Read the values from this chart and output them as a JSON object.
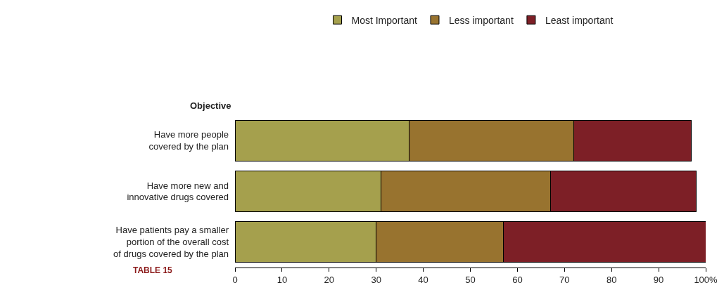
{
  "chart_data": {
    "type": "bar",
    "orientation": "horizontal",
    "stacked": true,
    "categories": [
      "Have more people\ncovered by the plan",
      "Have more new and\ninnovative drugs covered",
      "Have patients pay a smaller\nportion of the overall cost\nof drugs covered by the plan"
    ],
    "series": [
      {
        "name": "Most Important",
        "color": "#a5a04d",
        "values": [
          37,
          31,
          30
        ]
      },
      {
        "name": "Less important",
        "color": "#98732f",
        "values": [
          35,
          36,
          27
        ]
      },
      {
        "name": "Least important",
        "color": "#7d1f26",
        "values": [
          25,
          31,
          43
        ]
      }
    ],
    "xlim": [
      0,
      100
    ],
    "xticks": [
      0,
      10,
      20,
      30,
      40,
      50,
      60,
      70,
      80,
      90,
      {
        "value": 100,
        "label": "100%"
      }
    ],
    "annotations": [
      "Objective",
      "TABLE 15"
    ],
    "grid": false,
    "legend": "top"
  }
}
